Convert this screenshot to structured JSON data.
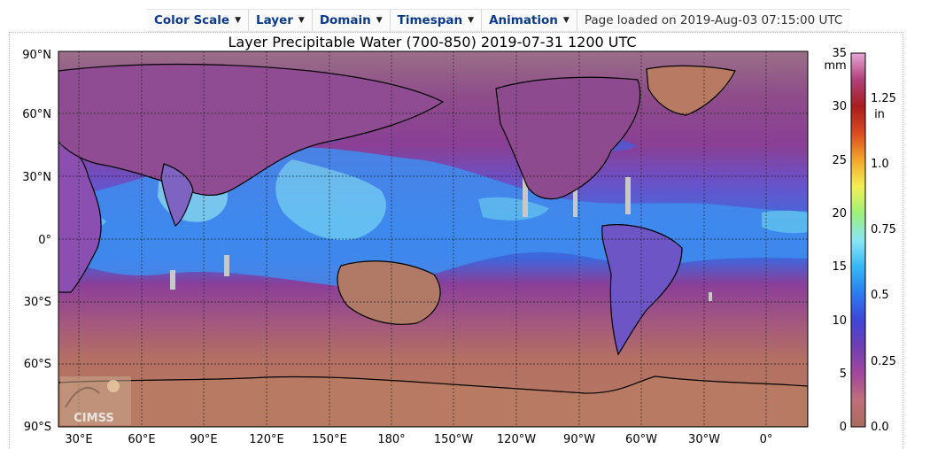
{
  "toolbar": {
    "menus": [
      {
        "label": "Color Scale"
      },
      {
        "label": "Layer"
      },
      {
        "label": "Domain"
      },
      {
        "label": "Timespan"
      },
      {
        "label": "Animation"
      }
    ],
    "status": "Page loaded on 2019-Aug-03 07:15:00 UTC"
  },
  "map": {
    "title": "Layer Precipitable Water (700-850)  2019-07-31 1200 UTC",
    "lat_labels": [
      "90°N",
      "60°N",
      "30°N",
      "0°",
      "30°S",
      "60°S",
      "90°S"
    ],
    "lon_labels": [
      "30°E",
      "60°E",
      "90°E",
      "120°E",
      "150°E",
      "180°",
      "150°W",
      "120°W",
      "90°W",
      "60°W",
      "30°W",
      "0°"
    ],
    "logo_text": "CIMSS",
    "colors": {
      "land_dry": "#b87a62",
      "ocean_low": "#9a4c86",
      "moist_mid": "#5a5cd8",
      "moist_high": "#44b6f0",
      "very_high": "#a8ecf4",
      "no_data": "#c8c8c8"
    }
  },
  "colorbar": {
    "mm_unit": "mm",
    "in_unit": "in",
    "mm_ticks": [
      "0",
      "5",
      "10",
      "15",
      "20",
      "25",
      "30",
      "35"
    ],
    "in_ticks": [
      "0.0",
      "0.25",
      "0.5",
      "0.75",
      "1.0",
      "1.25"
    ],
    "gradient": [
      "#a86b5d",
      "#c06e7a",
      "#a3479c",
      "#6f3fb1",
      "#3f46d7",
      "#2b7cf0",
      "#36b8f5",
      "#8be6f5",
      "#9cf07a",
      "#f3ef55",
      "#f3a72c",
      "#db4a20",
      "#a81d1d",
      "#b0407a",
      "#e7a6d7"
    ]
  }
}
